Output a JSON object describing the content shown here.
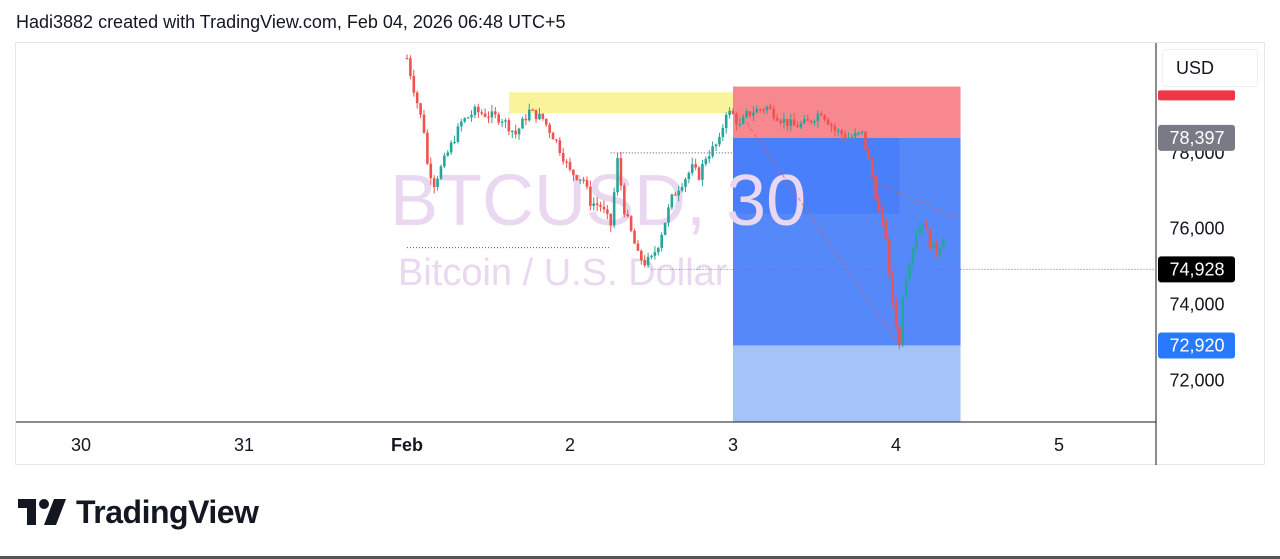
{
  "header": {
    "text": "Hadi3882 created with TradingView.com, Feb 04, 2026 06:48 UTC+5"
  },
  "watermark": {
    "symbol": "BTCUSD, 30",
    "description": "Bitcoin / U.S. Dollar"
  },
  "currency_button": "USD",
  "brand": {
    "name": "TradingView"
  },
  "colors": {
    "up": "#26a69a",
    "down": "#ef5350",
    "stop_zone": "#f7737d",
    "target_zone": "#2962ff",
    "supply_zone": "#f8f28a",
    "current_price_bg": "#000000",
    "target_label_bg": "#2979ff",
    "entry_label_bg": "#787b86"
  },
  "chart_data": {
    "type": "candlestick",
    "x_ticks": [
      "30",
      "31",
      "Feb",
      "2",
      "3",
      "4",
      "5"
    ],
    "y_ticks": [
      "72,000",
      "74,000",
      "76,000",
      "78,000"
    ],
    "y_range": [
      70900,
      80900
    ],
    "price_labels": {
      "stop": "",
      "entry": "78,397",
      "current": "74,928",
      "target": "72,920"
    },
    "levels": {
      "stop_top": 79750,
      "entry": 78397,
      "current": 74928,
      "target": 72920,
      "tp_zone_bottom": 70900,
      "supply_top": 79600,
      "supply_bottom": 79050,
      "partial_fill": 76400
    },
    "dotted_lines": [
      {
        "price": 75500,
        "from": "Feb 01 00:00",
        "to": "Feb 02 06:00"
      },
      {
        "price": 78000,
        "from": "Feb 02 06:00",
        "to": "Feb 03 00:00"
      }
    ],
    "supply_zone": {
      "from": "Feb 01 15:00",
      "to": "Feb 03 00:00"
    },
    "position": {
      "from": "Feb 03 00:00",
      "to": "Feb 04 09:30"
    },
    "price_path": [
      [
        "Feb 01 00:00",
        80500
      ],
      [
        "Feb 01 01:00",
        79700
      ],
      [
        "Feb 01 02:30",
        78600
      ],
      [
        "Feb 01 03:00",
        77700
      ],
      [
        "Feb 01 04:00",
        77200
      ],
      [
        "Feb 01 06:00",
        78000
      ],
      [
        "Feb 01 08:00",
        78800
      ],
      [
        "Feb 01 10:00",
        79100
      ],
      [
        "Feb 01 12:00",
        79000
      ],
      [
        "Feb 01 14:00",
        78900
      ],
      [
        "Feb 01 16:00",
        78500
      ],
      [
        "Feb 01 18:00",
        79100
      ],
      [
        "Feb 01 20:00",
        78900
      ],
      [
        "Feb 01 22:00",
        78300
      ],
      [
        "Feb 02 00:00",
        77500
      ],
      [
        "Feb 02 02:00",
        77300
      ],
      [
        "Feb 02 03:00",
        76700
      ],
      [
        "Feb 02 04:30",
        76600
      ],
      [
        "Feb 02 06:00",
        76100
      ],
      [
        "Feb 02 07:00",
        77800
      ],
      [
        "Feb 02 08:00",
        76500
      ],
      [
        "Feb 02 09:00",
        75900
      ],
      [
        "Feb 02 10:00",
        75300
      ],
      [
        "Feb 02 11:00",
        75100
      ],
      [
        "Feb 02 12:00",
        75200
      ],
      [
        "Feb 02 13:00",
        75600
      ],
      [
        "Feb 02 14:00",
        76200
      ],
      [
        "Feb 02 15:00",
        76800
      ],
      [
        "Feb 02 16:00",
        77100
      ],
      [
        "Feb 02 18:00",
        77600
      ],
      [
        "Feb 02 19:00",
        77400
      ],
      [
        "Feb 02 20:00",
        77900
      ],
      [
        "Feb 02 21:00",
        78100
      ],
      [
        "Feb 02 22:00",
        78300
      ],
      [
        "Feb 02 23:00",
        79100
      ],
      [
        "Feb 03 00:00",
        79000
      ],
      [
        "Feb 03 01:00",
        78700
      ],
      [
        "Feb 03 02:00",
        79000
      ],
      [
        "Feb 03 03:00",
        79100
      ],
      [
        "Feb 03 05:00",
        79200
      ],
      [
        "Feb 03 07:00",
        78900
      ],
      [
        "Feb 03 09:00",
        78700
      ],
      [
        "Feb 03 11:00",
        78800
      ],
      [
        "Feb 03 13:00",
        79100
      ],
      [
        "Feb 03 15:00",
        78600
      ],
      [
        "Feb 03 17:00",
        78400
      ],
      [
        "Feb 03 19:00",
        78500
      ],
      [
        "Feb 03 20:30",
        77400
      ],
      [
        "Feb 03 21:30",
        76400
      ],
      [
        "Feb 03 22:30",
        75800
      ],
      [
        "Feb 03 23:00",
        74700
      ],
      [
        "Feb 04 00:00",
        73500
      ],
      [
        "Feb 04 00:30",
        72920
      ],
      [
        "Feb 04 01:00",
        74300
      ],
      [
        "Feb 04 02:00",
        75200
      ],
      [
        "Feb 04 03:00",
        75900
      ],
      [
        "Feb 04 04:00",
        76200
      ],
      [
        "Feb 04 05:00",
        75600
      ],
      [
        "Feb 04 06:00",
        75400
      ],
      [
        "Feb 04 07:00",
        75800
      ],
      [
        "Feb 04 07:30",
        76000
      ]
    ]
  }
}
